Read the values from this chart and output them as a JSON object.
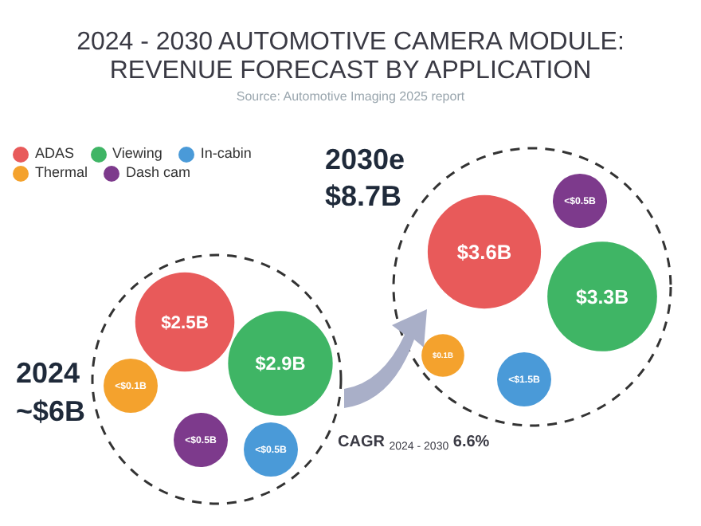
{
  "chart_data": {
    "type": "other",
    "title": "2024 - 2030 AUTOMOTIVE CAMERA MODULE: REVENUE FORECAST BY APPLICATION",
    "subtitle": "Source: Automotive Imaging 2025 report",
    "categories": [
      "2024",
      "2030e"
    ],
    "series": [
      {
        "name": "ADAS",
        "color": "#e85a5a",
        "values": [
          2.5,
          3.6
        ],
        "value_labels": [
          "$2.5B",
          "$3.6B"
        ]
      },
      {
        "name": "Viewing",
        "color": "#3fb565",
        "values": [
          2.9,
          3.3
        ],
        "value_labels": [
          "$2.9B",
          "$3.3B"
        ]
      },
      {
        "name": "In-cabin",
        "color": "#4a9ad8",
        "values": [
          null,
          null
        ],
        "value_labels": [
          "<$0.5B",
          "<$1.5B"
        ]
      },
      {
        "name": "Thermal",
        "color": "#f4a22d",
        "values": [
          null,
          0.1
        ],
        "value_labels": [
          "<$0.1B",
          "$0.1B"
        ]
      },
      {
        "name": "Dash cam",
        "color": "#7d3a8c",
        "values": [
          null,
          null
        ],
        "value_labels": [
          "<$0.5B",
          "<$0.5B"
        ]
      }
    ],
    "totals": [
      "~$6B",
      "$8.7B"
    ],
    "legend": "top left",
    "annotations": [
      "CAGR $_{2024 - 2030}$ 6.6%"
    ]
  }
}
